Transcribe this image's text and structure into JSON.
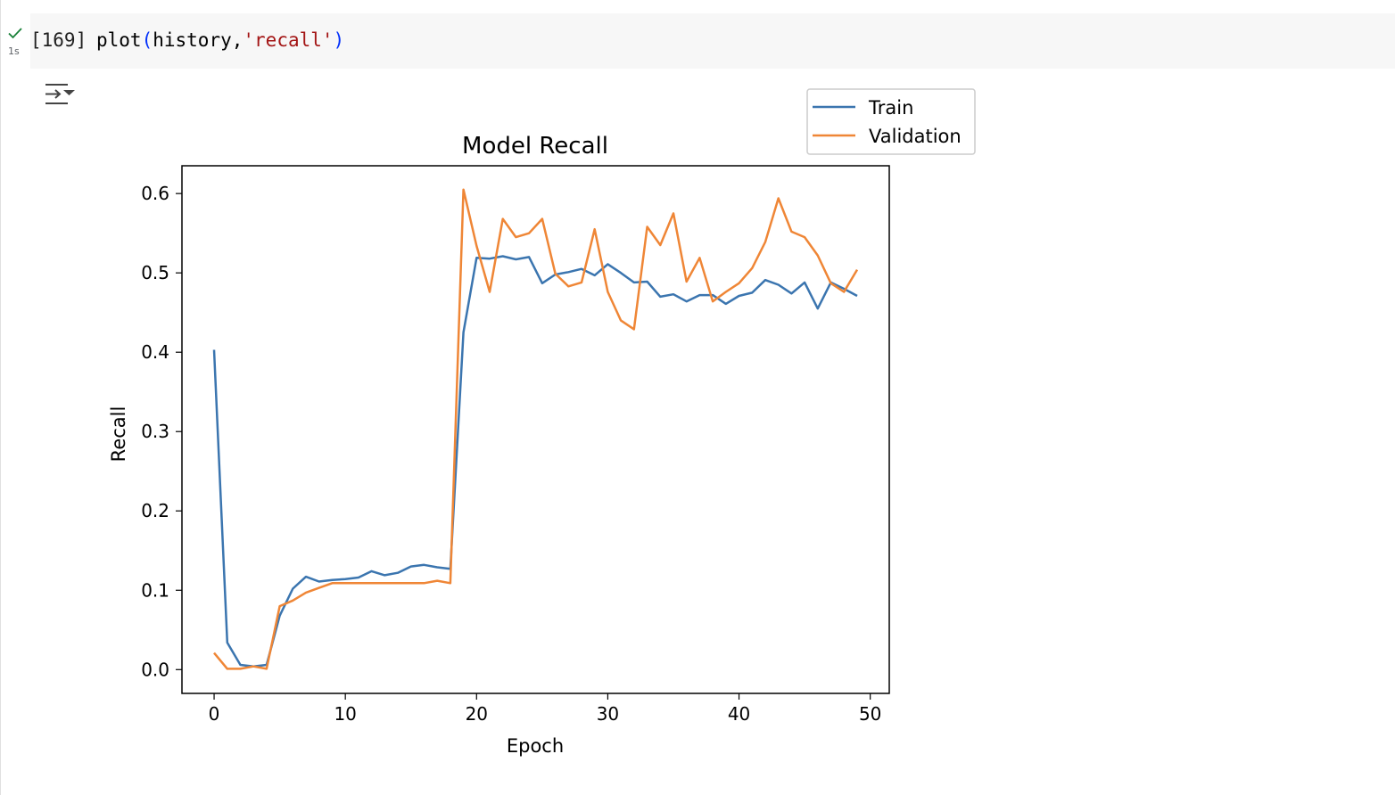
{
  "cell": {
    "exec_count": "[169]",
    "code": {
      "func": "plot",
      "open": "(",
      "arg1": "history,",
      "arg2": "'recall'",
      "close": ")"
    },
    "run_time": "1s",
    "status_color": "#188038"
  },
  "output": {
    "toggle_icon": "output-collapse-icon"
  },
  "chart_data": {
    "type": "line",
    "title": "Model Recall",
    "xlabel": "Epoch",
    "ylabel": "Recall",
    "xlim": [
      -2.45,
      51.45
    ],
    "ylim": [
      -0.03,
      0.635
    ],
    "xticks": [
      0,
      10,
      20,
      30,
      40,
      50
    ],
    "yticks": [
      0.0,
      0.1,
      0.2,
      0.3,
      0.4,
      0.5,
      0.6
    ],
    "xtick_labels": [
      "0",
      "10",
      "20",
      "30",
      "40",
      "50"
    ],
    "ytick_labels": [
      "0.0",
      "0.1",
      "0.2",
      "0.3",
      "0.4",
      "0.5",
      "0.6"
    ],
    "legend": {
      "placement": "outside upper-right",
      "entries": [
        "Train",
        "Validation"
      ]
    },
    "grid": false,
    "x": [
      0,
      1,
      2,
      3,
      4,
      5,
      6,
      7,
      8,
      9,
      10,
      11,
      12,
      13,
      14,
      15,
      16,
      17,
      18,
      19,
      20,
      21,
      22,
      23,
      24,
      25,
      26,
      27,
      28,
      29,
      30,
      31,
      32,
      33,
      34,
      35,
      36,
      37,
      38,
      39,
      40,
      41,
      42,
      43,
      44,
      45,
      46,
      47,
      48,
      49
    ],
    "series": [
      {
        "name": "Train",
        "color": "#3b75af",
        "values": [
          0.403,
          0.034,
          0.006,
          0.004,
          0.006,
          0.068,
          0.102,
          0.117,
          0.111,
          0.113,
          0.114,
          0.116,
          0.124,
          0.119,
          0.122,
          0.13,
          0.132,
          0.129,
          0.127,
          0.425,
          0.519,
          0.518,
          0.521,
          0.517,
          0.52,
          0.487,
          0.498,
          0.501,
          0.505,
          0.497,
          0.511,
          0.5,
          0.488,
          0.489,
          0.47,
          0.473,
          0.464,
          0.472,
          0.472,
          0.461,
          0.471,
          0.475,
          0.491,
          0.485,
          0.474,
          0.488,
          0.455,
          0.488,
          0.48,
          0.471
        ]
      },
      {
        "name": "Validation",
        "color": "#ef8636",
        "values": [
          0.021,
          0.001,
          0.001,
          0.004,
          0.001,
          0.08,
          0.087,
          0.097,
          0.103,
          0.109,
          0.109,
          0.109,
          0.109,
          0.109,
          0.109,
          0.109,
          0.109,
          0.112,
          0.109,
          0.605,
          0.534,
          0.476,
          0.568,
          0.545,
          0.55,
          0.568,
          0.499,
          0.483,
          0.488,
          0.555,
          0.476,
          0.44,
          0.429,
          0.558,
          0.535,
          0.575,
          0.489,
          0.519,
          0.464,
          0.476,
          0.487,
          0.506,
          0.539,
          0.594,
          0.552,
          0.545,
          0.522,
          0.487,
          0.476,
          0.504
        ]
      }
    ]
  }
}
